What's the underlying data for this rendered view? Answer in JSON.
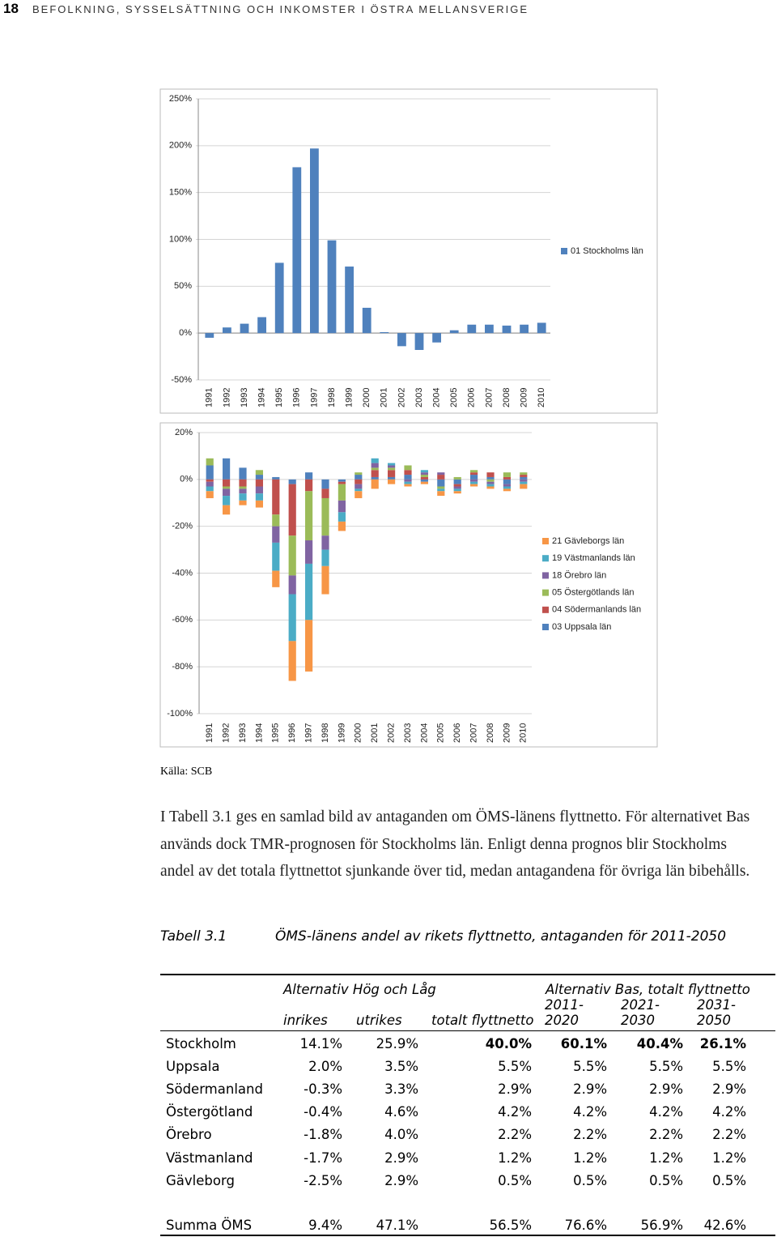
{
  "header": {
    "page_number": "18",
    "title": "BEFOLKNING, SYSSELSÄTTNING OCH INKOMSTER I ÖSTRA MELLANSVERIGE"
  },
  "chart_data": [
    {
      "type": "bar",
      "categories": [
        "1991",
        "1992",
        "1993",
        "1994",
        "1995",
        "1996",
        "1997",
        "1998",
        "1999",
        "2000",
        "2001",
        "2002",
        "2003",
        "2004",
        "2005",
        "2006",
        "2007",
        "2008",
        "2009",
        "2010"
      ],
      "series": [
        {
          "name": "01 Stockholms län",
          "color": "#4f81bd",
          "values": [
            -5,
            6,
            10,
            17,
            75,
            177,
            197,
            99,
            71,
            27,
            1,
            -14,
            -18,
            -10,
            3,
            9,
            9,
            8,
            9,
            11
          ]
        }
      ],
      "ylim": [
        -50,
        250
      ],
      "yticks": [
        {
          "value": -50,
          "label": "-50%"
        },
        {
          "value": 0,
          "label": "0%"
        },
        {
          "value": 50,
          "label": "50%"
        },
        {
          "value": 100,
          "label": "100%"
        },
        {
          "value": 150,
          "label": "150%"
        },
        {
          "value": 200,
          "label": "200%"
        },
        {
          "value": 250,
          "label": "250%"
        }
      ],
      "grid": true,
      "legend": "right"
    },
    {
      "type": "stacked_bar",
      "categories": [
        "1991",
        "1992",
        "1993",
        "1994",
        "1995",
        "1996",
        "1997",
        "1998",
        "1999",
        "2000",
        "2001",
        "2002",
        "2003",
        "2004",
        "2005",
        "2006",
        "2007",
        "2008",
        "2009",
        "2010"
      ],
      "series": [
        {
          "name": "03 Uppsala län",
          "color": "#4f81bd",
          "values": [
            6,
            9,
            5,
            2,
            1,
            -2,
            3,
            -4,
            -1,
            2,
            1,
            1,
            2,
            -1,
            -3,
            -2,
            2,
            1,
            -2,
            1
          ]
        },
        {
          "name": "04 Södermanlands län",
          "color": "#c0504d",
          "values": [
            -1,
            -3,
            -3,
            -3,
            -15,
            -22,
            -5,
            -4,
            -1,
            -2,
            3,
            3,
            2,
            1,
            2,
            -1,
            1,
            2,
            1,
            1
          ]
        },
        {
          "name": "05 Östergötlands län",
          "color": "#9bbb59",
          "values": [
            3,
            -1,
            -1,
            2,
            -5,
            -17,
            -21,
            -16,
            -7,
            1,
            1,
            1,
            2,
            1,
            -1,
            1,
            1,
            -1,
            2,
            1
          ]
        },
        {
          "name": "18 Örebro län",
          "color": "#8064a2",
          "values": [
            -2,
            -3,
            -2,
            -3,
            -7,
            -8,
            -10,
            -6,
            -5,
            -2,
            2,
            1,
            -1,
            1,
            1,
            -1,
            -1,
            -1,
            -1,
            -1
          ]
        },
        {
          "name": "19 Västmanlands län",
          "color": "#4bacc6",
          "values": [
            -2,
            -4,
            -3,
            -3,
            -12,
            -20,
            -24,
            -7,
            -4,
            -1,
            2,
            1,
            -1,
            1,
            -1,
            -1,
            -1,
            -1,
            -1,
            -1
          ]
        },
        {
          "name": "21 Gävleborgs län",
          "color": "#f79646",
          "values": [
            -3,
            -4,
            -2,
            -3,
            -7,
            -17,
            -22,
            -12,
            -4,
            -3,
            -4,
            -2,
            -1,
            -1,
            -2,
            -1,
            -1,
            -1,
            -1,
            -2
          ]
        }
      ],
      "ylim": [
        -100,
        20
      ],
      "yticks": [
        {
          "value": -100,
          "label": "-100%"
        },
        {
          "value": -80,
          "label": "-80%"
        },
        {
          "value": -60,
          "label": "-60%"
        },
        {
          "value": -40,
          "label": "-40%"
        },
        {
          "value": -20,
          "label": "-20%"
        },
        {
          "value": 0,
          "label": "0%"
        },
        {
          "value": 20,
          "label": "20%"
        }
      ],
      "grid": true,
      "legend": "right"
    }
  ],
  "source": "Källa: SCB",
  "paragraph": "I Tabell 3.1 ges en samlad bild av antaganden om ÖMS-länens flyttnetto. För alternativet Bas används dock TMR-prognosen för Stockholms län. Enligt denna prognos blir Stockholms andel av det totala flyttnettot sjunkande över tid, medan antagandena för övriga län bibehålls.",
  "caption": {
    "label": "Tabell 3.1",
    "text": "ÖMS-länens andel av rikets flyttnetto, antaganden för 2011-2050"
  },
  "table": {
    "group_headers": [
      "Alternativ Hög och Låg",
      "Alternativ Bas, totalt flyttnetto"
    ],
    "columns": [
      "inrikes",
      "utrikes",
      "totalt flyttnetto",
      "2011-2020",
      "2021-2030",
      "2031-2050"
    ],
    "rows": [
      [
        "Stockholm",
        "14.1%",
        "25.9%",
        "40.0%",
        "60.1%",
        "40.4%",
        "26.1%"
      ],
      [
        "Uppsala",
        "2.0%",
        "3.5%",
        "5.5%",
        "5.5%",
        "5.5%",
        "5.5%"
      ],
      [
        "Södermanland",
        "-0.3%",
        "3.3%",
        "2.9%",
        "2.9%",
        "2.9%",
        "2.9%"
      ],
      [
        "Östergötland",
        "-0.4%",
        "4.6%",
        "4.2%",
        "4.2%",
        "4.2%",
        "4.2%"
      ],
      [
        "Örebro",
        "-1.8%",
        "4.0%",
        "2.2%",
        "2.2%",
        "2.2%",
        "2.2%"
      ],
      [
        "Västmanland",
        "-1.7%",
        "2.9%",
        "1.2%",
        "1.2%",
        "1.2%",
        "1.2%"
      ],
      [
        "Gävleborg",
        "-2.5%",
        "2.9%",
        "0.5%",
        "0.5%",
        "0.5%",
        "0.5%"
      ]
    ],
    "total_row": [
      "Summa ÖMS",
      "9.4%",
      "47.1%",
      "56.5%",
      "76.6%",
      "56.9%",
      "42.6%"
    ]
  }
}
